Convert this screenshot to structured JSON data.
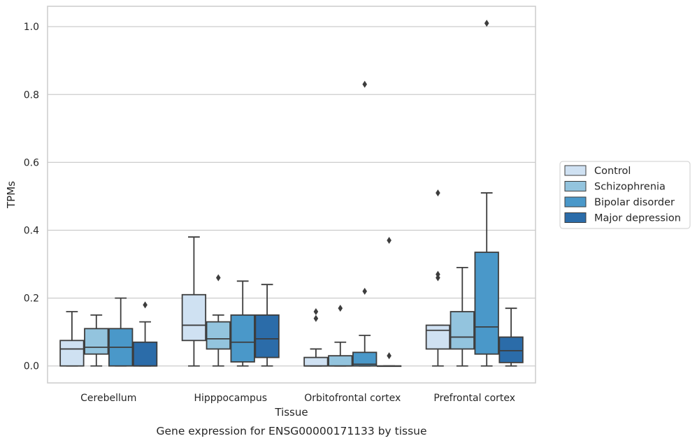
{
  "caption": "Gene expression for ENSG00000171133 by tissue",
  "chart_data": {
    "type": "box",
    "title": "",
    "xlabel": "Tissue",
    "ylabel": "TPMs",
    "ylim": [
      -0.05,
      1.06
    ],
    "yticks": [
      0.0,
      0.2,
      0.4,
      0.6,
      0.8,
      1.0
    ],
    "ytick_labels": [
      "0.0",
      "0.2",
      "0.4",
      "0.6",
      "0.8",
      "1.0"
    ],
    "grid": "horizontal",
    "legend_position": "right",
    "categories": [
      "Cerebellum",
      "Hipppocampus",
      "Orbitofrontal cortex",
      "Prefrontal cortex"
    ],
    "series": [
      {
        "name": "Control",
        "color": "#cfe1f2",
        "boxes": [
          {
            "whislo": 0.0,
            "q1": 0.0,
            "med": 0.05,
            "q3": 0.075,
            "whishi": 0.16,
            "fliers": []
          },
          {
            "whislo": 0.0,
            "q1": 0.075,
            "med": 0.12,
            "q3": 0.21,
            "whishi": 0.38,
            "fliers": []
          },
          {
            "whislo": 0.0,
            "q1": 0.0,
            "med": 0.0,
            "q3": 0.025,
            "whishi": 0.05,
            "fliers": [
              0.14,
              0.16
            ]
          },
          {
            "whislo": 0.0,
            "q1": 0.05,
            "med": 0.105,
            "q3": 0.12,
            "whishi": 0.12,
            "fliers": [
              0.26,
              0.27,
              0.51
            ]
          }
        ]
      },
      {
        "name": "Schizophrenia",
        "color": "#93c4de",
        "boxes": [
          {
            "whislo": 0.0,
            "q1": 0.035,
            "med": 0.055,
            "q3": 0.11,
            "whishi": 0.15,
            "fliers": []
          },
          {
            "whislo": 0.0,
            "q1": 0.05,
            "med": 0.08,
            "q3": 0.13,
            "whishi": 0.15,
            "fliers": [
              0.26
            ]
          },
          {
            "whislo": 0.0,
            "q1": 0.0,
            "med": 0.0,
            "q3": 0.03,
            "whishi": 0.07,
            "fliers": [
              0.17
            ]
          },
          {
            "whislo": 0.0,
            "q1": 0.05,
            "med": 0.085,
            "q3": 0.16,
            "whishi": 0.29,
            "fliers": []
          }
        ]
      },
      {
        "name": "Bipolar disorder",
        "color": "#4a98c9",
        "boxes": [
          {
            "whislo": 0.0,
            "q1": 0.0,
            "med": 0.055,
            "q3": 0.11,
            "whishi": 0.2,
            "fliers": []
          },
          {
            "whislo": 0.0,
            "q1": 0.012,
            "med": 0.07,
            "q3": 0.15,
            "whishi": 0.25,
            "fliers": []
          },
          {
            "whislo": 0.0,
            "q1": 0.0,
            "med": 0.005,
            "q3": 0.04,
            "whishi": 0.09,
            "fliers": [
              0.22,
              0.83
            ]
          },
          {
            "whislo": 0.0,
            "q1": 0.035,
            "med": 0.115,
            "q3": 0.335,
            "whishi": 0.51,
            "fliers": [
              1.01
            ]
          }
        ]
      },
      {
        "name": "Major depression",
        "color": "#2b6ca9",
        "boxes": [
          {
            "whislo": 0.0,
            "q1": 0.0,
            "med": 0.0,
            "q3": 0.07,
            "whishi": 0.13,
            "fliers": [
              0.18
            ]
          },
          {
            "whislo": 0.0,
            "q1": 0.025,
            "med": 0.08,
            "q3": 0.15,
            "whishi": 0.24,
            "fliers": []
          },
          {
            "whislo": 0.0,
            "q1": 0.0,
            "med": 0.0,
            "q3": 0.0,
            "whishi": 0.0,
            "fliers": [
              0.03,
              0.37
            ]
          },
          {
            "whislo": 0.0,
            "q1": 0.01,
            "med": 0.045,
            "q3": 0.085,
            "whishi": 0.17,
            "fliers": []
          }
        ]
      }
    ]
  }
}
